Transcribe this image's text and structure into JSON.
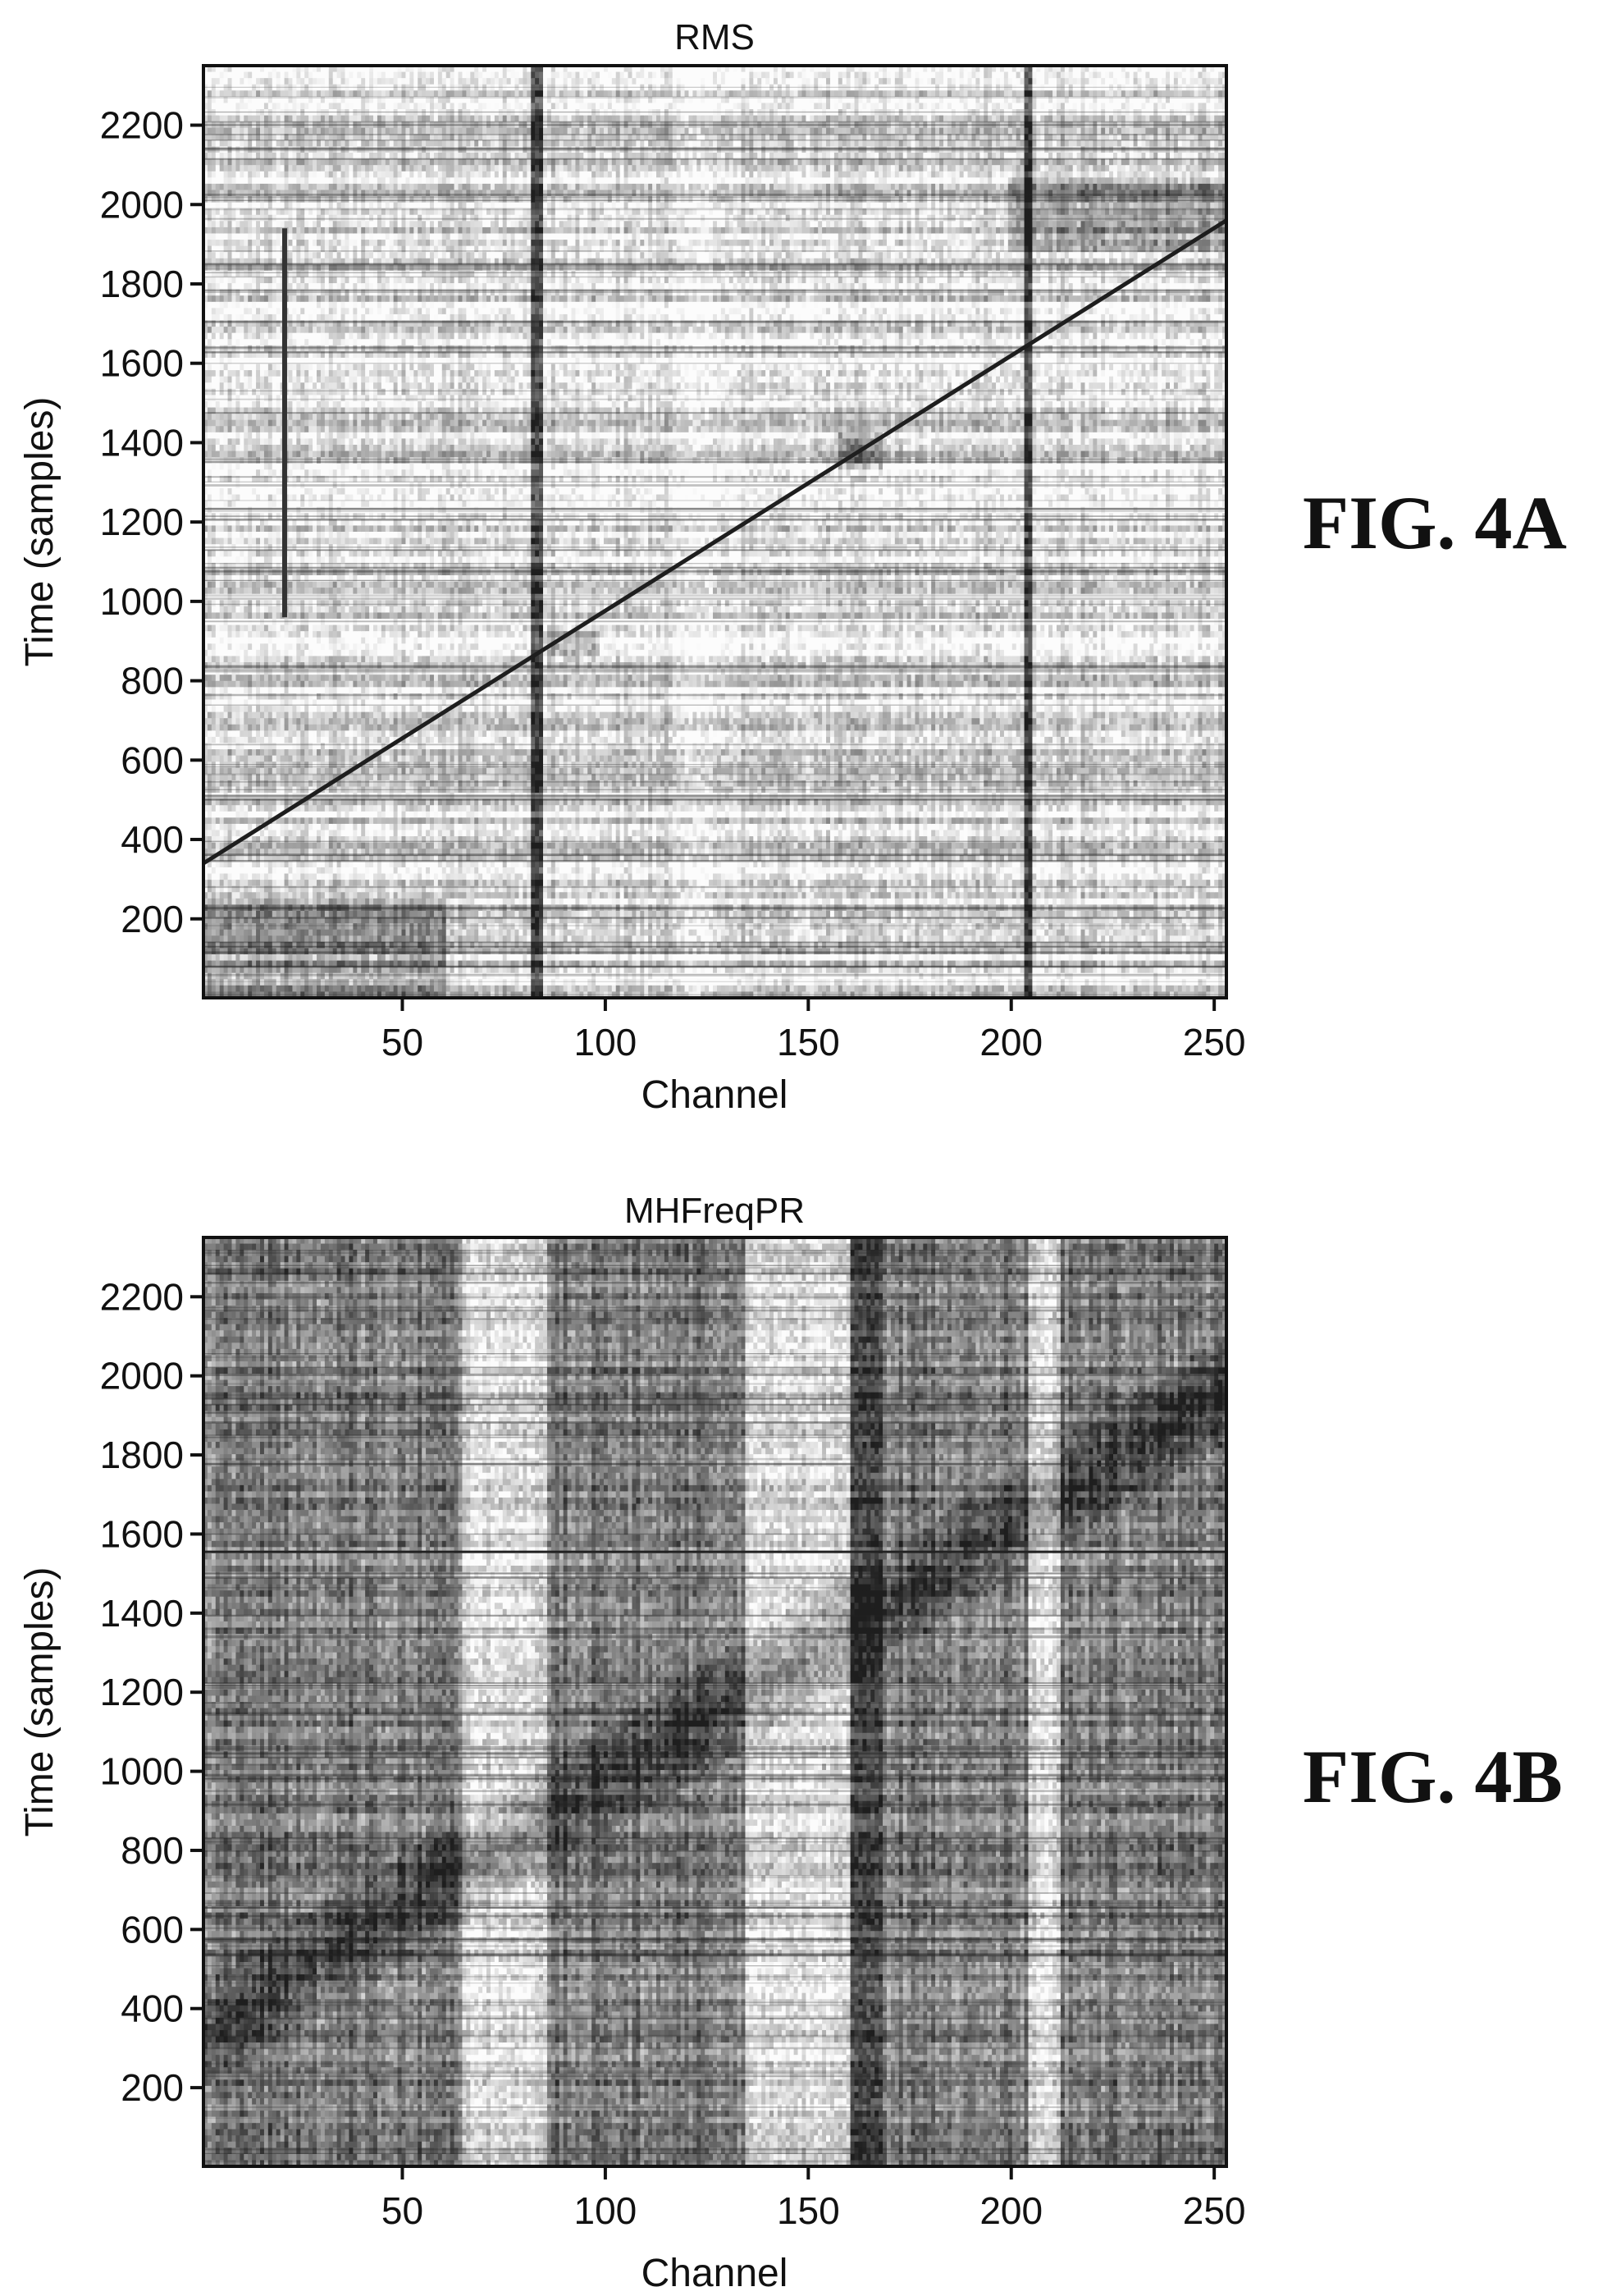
{
  "chart_data": [
    {
      "type": "heatmap",
      "title": "RMS",
      "figure_label": "FIG. 4A",
      "xlabel": "Channel",
      "ylabel": "Time (samples)",
      "xlim": [
        1,
        253
      ],
      "ylim": [
        1,
        2350
      ],
      "xticks": [
        50,
        100,
        150,
        200,
        250
      ],
      "yticks": [
        200,
        400,
        600,
        800,
        1000,
        1200,
        1400,
        1600,
        1800,
        2000,
        2200
      ],
      "colormap": "grayscale",
      "features": {
        "diagonal": {
          "from": [
            1,
            340
          ],
          "to": [
            253,
            1960
          ]
        },
        "dark_columns": [
          82,
          83,
          84,
          204,
          205
        ],
        "light_columns": [
          120,
          121,
          122,
          123,
          124,
          125,
          126,
          150
        ],
        "vertical_streak": {
          "channel": 21,
          "from": 960,
          "to": 1940
        },
        "dark_blocks": [
          {
            "x": [
              1,
              60
            ],
            "y": [
              1,
              250
            ]
          },
          {
            "x": [
              200,
              253
            ],
            "y": [
              1880,
              2070
            ]
          },
          {
            "x": [
              158,
              168
            ],
            "y": [
              1330,
              1430
            ]
          },
          {
            "x": [
              85,
              98
            ],
            "y": [
              860,
              930
            ]
          }
        ]
      }
    },
    {
      "type": "heatmap",
      "title": "MHFreqPR",
      "figure_label": "FIG. 4B",
      "xlabel": "Channel",
      "ylabel": "Time (samples)",
      "xlim": [
        1,
        253
      ],
      "ylim": [
        1,
        2350
      ],
      "xticks": [
        50,
        100,
        150,
        200,
        250
      ],
      "yticks": [
        200,
        400,
        600,
        800,
        1000,
        1200,
        1400,
        1600,
        1800,
        2000,
        2200
      ],
      "colormap": "grayscale",
      "features": {
        "diagonal": {
          "from": [
            1,
            340
          ],
          "to": [
            253,
            1960
          ]
        },
        "band_halfwidth": 140,
        "light_bands": [
          [
            65,
            85
          ],
          [
            135,
            160
          ],
          [
            205,
            212
          ]
        ],
        "dark_bands": [
          [
            161,
            168
          ]
        ],
        "horizontal_line_at": 1555
      }
    }
  ]
}
